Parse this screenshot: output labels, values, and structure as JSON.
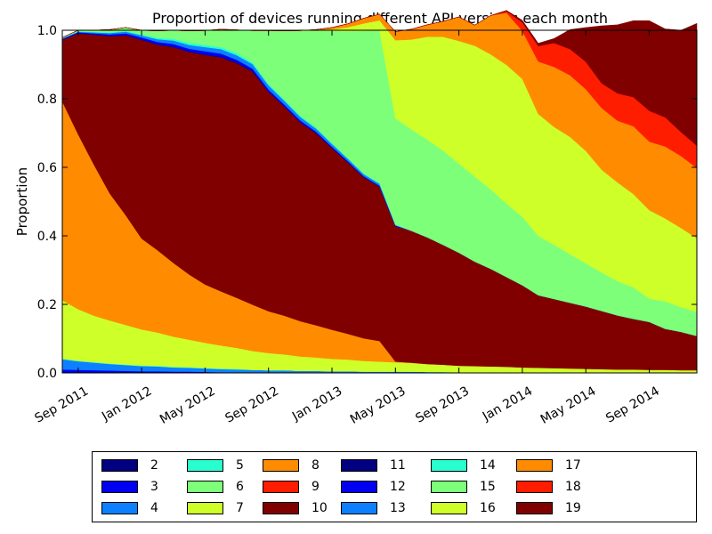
{
  "chart_data": {
    "type": "area",
    "stacked": true,
    "title": "Proportion of devices running different API versions each month",
    "xlabel": "",
    "ylabel": "Proportion",
    "ylim": [
      0,
      1
    ],
    "yticks": [
      "0.0",
      "0.2",
      "0.4",
      "0.6",
      "0.8",
      "1.0"
    ],
    "xticks": [
      "Sep 2011",
      "Jan 2012",
      "May 2012",
      "Sep 2012",
      "Jan 2013",
      "May 2013",
      "Sep 2013",
      "Jan 2014",
      "May 2014",
      "Sep 2014"
    ],
    "x_months": [
      "2011-08",
      "2011-09",
      "2011-10",
      "2011-11",
      "2011-12",
      "2012-01",
      "2012-02",
      "2012-03",
      "2012-04",
      "2012-05",
      "2012-06",
      "2012-07",
      "2012-08",
      "2012-09",
      "2012-10",
      "2012-11",
      "2012-12",
      "2013-01",
      "2013-02",
      "2013-03",
      "2013-04",
      "2013-05",
      "2013-06",
      "2013-07",
      "2013-08",
      "2013-09",
      "2013-10",
      "2013-11",
      "2013-12",
      "2014-01",
      "2014-02",
      "2014-03",
      "2014-04",
      "2014-05",
      "2014-06",
      "2014-07",
      "2014-08",
      "2014-09",
      "2014-10",
      "2014-11",
      "2014-12"
    ],
    "grid": false,
    "legend_position": "below",
    "series": [
      {
        "name": "2",
        "color": "#000080",
        "values": [
          0.002,
          0.002,
          0.002,
          0.002,
          0.001,
          0.001,
          0.001,
          0.001,
          0.001,
          0,
          0,
          0,
          0,
          0,
          0,
          0,
          0,
          0,
          0,
          0,
          0,
          0,
          0,
          0,
          0,
          0,
          0,
          0,
          0,
          0,
          0,
          0,
          0,
          0,
          0,
          0,
          0,
          0,
          0,
          0,
          0
        ]
      },
      {
        "name": "3",
        "color": "#0000f1",
        "values": [
          0.008,
          0.007,
          0.006,
          0.005,
          0.005,
          0.004,
          0.004,
          0.003,
          0.003,
          0.003,
          0.002,
          0.002,
          0.002,
          0.002,
          0.002,
          0.001,
          0.001,
          0.001,
          0.001,
          0.001,
          0.001,
          0.001,
          0.001,
          0.001,
          0.001,
          0,
          0,
          0,
          0,
          0,
          0,
          0,
          0,
          0,
          0,
          0,
          0,
          0,
          0,
          0,
          0
        ]
      },
      {
        "name": "4",
        "color": "#0d80ff",
        "values": [
          0.03,
          0.025,
          0.022,
          0.019,
          0.017,
          0.015,
          0.014,
          0.012,
          0.011,
          0.01,
          0.009,
          0.008,
          0.007,
          0.006,
          0.006,
          0.005,
          0.005,
          0.004,
          0.004,
          0.003,
          0.003,
          0.003,
          0.003,
          0.002,
          0.002,
          0.002,
          0.002,
          0.002,
          0.002,
          0.001,
          0.001,
          0.001,
          0.001,
          0.001,
          0.001,
          0.001,
          0.001,
          0.001,
          0.001,
          0.001,
          0.001
        ]
      },
      {
        "name": "5",
        "color": "#29ffce",
        "values": [
          0.001,
          0.001,
          0.001,
          0.001,
          0.001,
          0.001,
          0.001,
          0.001,
          0.001,
          0.001,
          0.001,
          0.001,
          0,
          0,
          0,
          0,
          0,
          0,
          0,
          0,
          0,
          0,
          0,
          0,
          0,
          0,
          0,
          0,
          0,
          0,
          0,
          0,
          0,
          0,
          0,
          0,
          0,
          0,
          0,
          0,
          0
        ]
      },
      {
        "name": "6",
        "color": "#7dff7a",
        "values": [
          0.001,
          0.001,
          0.001,
          0.001,
          0.001,
          0.001,
          0.001,
          0.001,
          0.001,
          0.001,
          0.001,
          0.001,
          0,
          0,
          0,
          0,
          0,
          0,
          0,
          0,
          0,
          0,
          0,
          0,
          0,
          0,
          0,
          0,
          0,
          0,
          0,
          0,
          0,
          0,
          0,
          0,
          0,
          0,
          0,
          0,
          0
        ]
      },
      {
        "name": "7",
        "color": "#ceff29",
        "values": [
          0.17,
          0.15,
          0.135,
          0.125,
          0.115,
          0.105,
          0.097,
          0.088,
          0.08,
          0.073,
          0.067,
          0.061,
          0.055,
          0.05,
          0.046,
          0.042,
          0.039,
          0.036,
          0.034,
          0.031,
          0.029,
          0.027,
          0.025,
          0.023,
          0.021,
          0.019,
          0.018,
          0.017,
          0.016,
          0.015,
          0.014,
          0.013,
          0.012,
          0.011,
          0.01,
          0.009,
          0.009,
          0.008,
          0.008,
          0.007,
          0.007
        ]
      },
      {
        "name": "8",
        "color": "#ff8c00",
        "values": [
          0.58,
          0.51,
          0.44,
          0.37,
          0.32,
          0.265,
          0.24,
          0.215,
          0.19,
          0.17,
          0.158,
          0.146,
          0.135,
          0.122,
          0.113,
          0.103,
          0.094,
          0.085,
          0.075,
          0.066,
          0.06,
          0.002,
          0.001,
          0,
          0,
          0,
          0,
          0,
          0,
          0,
          0,
          0,
          0,
          0,
          0,
          0,
          0,
          0,
          0,
          0,
          0
        ]
      },
      {
        "name": "9",
        "color": "#ff1d00",
        "values": [
          0,
          0,
          0,
          0,
          0,
          0,
          0,
          0,
          0,
          0,
          0,
          0,
          0,
          0,
          0,
          0,
          0,
          0,
          0,
          0,
          0,
          0,
          0,
          0,
          0,
          0,
          0,
          0,
          0,
          0,
          0,
          0,
          0,
          0,
          0,
          0,
          0,
          0,
          0,
          0,
          0
        ]
      },
      {
        "name": "10",
        "color": "#800000",
        "values": [
          0.18,
          0.295,
          0.38,
          0.46,
          0.525,
          0.58,
          0.6,
          0.63,
          0.65,
          0.67,
          0.683,
          0.685,
          0.68,
          0.64,
          0.61,
          0.58,
          0.56,
          0.53,
          0.5,
          0.47,
          0.45,
          0.395,
          0.385,
          0.37,
          0.35,
          0.33,
          0.305,
          0.285,
          0.262,
          0.24,
          0.212,
          0.202,
          0.192,
          0.182,
          0.17,
          0.158,
          0.148,
          0.14,
          0.12,
          0.112,
          0.1
        ]
      },
      {
        "name": "11",
        "color": "#000080",
        "values": [
          0.001,
          0.001,
          0.001,
          0.001,
          0.001,
          0.001,
          0.001,
          0.001,
          0.001,
          0.002,
          0.002,
          0.002,
          0.002,
          0.001,
          0.001,
          0.001,
          0.001,
          0.001,
          0.001,
          0.001,
          0.001,
          0.001,
          0,
          0,
          0,
          0,
          0,
          0,
          0,
          0,
          0,
          0,
          0,
          0,
          0,
          0,
          0,
          0,
          0,
          0,
          0
        ]
      },
      {
        "name": "12",
        "color": "#0000f1",
        "values": [
          0.002,
          0.002,
          0.003,
          0.004,
          0.005,
          0.006,
          0.007,
          0.008,
          0.008,
          0.009,
          0.009,
          0.008,
          0.007,
          0.006,
          0.005,
          0.005,
          0.004,
          0.003,
          0.003,
          0.002,
          0.002,
          0.001,
          0,
          0,
          0,
          0,
          0,
          0,
          0,
          0,
          0,
          0,
          0,
          0,
          0,
          0,
          0,
          0,
          0,
          0,
          0
        ]
      },
      {
        "name": "13",
        "color": "#0d80ff",
        "values": [
          0.002,
          0.002,
          0.003,
          0.004,
          0.005,
          0.006,
          0.008,
          0.01,
          0.011,
          0.012,
          0.013,
          0.013,
          0.013,
          0.012,
          0.011,
          0.01,
          0.009,
          0.008,
          0.007,
          0.006,
          0.006,
          0.002,
          0,
          0,
          0,
          0,
          0,
          0,
          0,
          0,
          0,
          0,
          0,
          0,
          0,
          0,
          0,
          0,
          0,
          0,
          0
        ]
      },
      {
        "name": "14",
        "color": "#29ffce",
        "values": [
          0.001,
          0.001,
          0.001,
          0.002,
          0.002,
          0.003,
          0.004,
          0.005,
          0.006,
          0.006,
          0.006,
          0.006,
          0.005,
          0.005,
          0.004,
          0.004,
          0.003,
          0.003,
          0.002,
          0.002,
          0.002,
          0.001,
          0,
          0,
          0,
          0,
          0,
          0,
          0,
          0,
          0,
          0,
          0,
          0,
          0,
          0,
          0,
          0,
          0,
          0,
          0
        ]
      },
      {
        "name": "15",
        "color": "#7dff7a",
        "values": [
          0.001,
          0.003,
          0.005,
          0.008,
          0.01,
          0.012,
          0.02,
          0.025,
          0.035,
          0.042,
          0.052,
          0.068,
          0.093,
          0.155,
          0.2,
          0.247,
          0.283,
          0.327,
          0.37,
          0.416,
          0.445,
          0.31,
          0.296,
          0.285,
          0.275,
          0.26,
          0.248,
          0.232,
          0.214,
          0.2,
          0.173,
          0.158,
          0.142,
          0.126,
          0.112,
          0.1,
          0.092,
          0.068,
          0.08,
          0.072,
          0.07
        ]
      },
      {
        "name": "16",
        "color": "#ceff29",
        "values": [
          0,
          0,
          0,
          0,
          0,
          0,
          0,
          0,
          0,
          0,
          0,
          0,
          0,
          0,
          0,
          0.001,
          0.002,
          0.005,
          0.012,
          0.022,
          0.03,
          0.228,
          0.262,
          0.3,
          0.332,
          0.358,
          0.382,
          0.394,
          0.405,
          0.402,
          0.356,
          0.344,
          0.342,
          0.328,
          0.3,
          0.288,
          0.272,
          0.258,
          0.242,
          0.231,
          0.215
        ]
      },
      {
        "name": "17",
        "color": "#ff8c00",
        "values": [
          0,
          0,
          0,
          0,
          0,
          0,
          0,
          0,
          0,
          0,
          0,
          0,
          0,
          0,
          0,
          0,
          0.001,
          0.005,
          0.01,
          0.015,
          0.018,
          0.025,
          0.03,
          0.035,
          0.045,
          0.07,
          0.06,
          0.113,
          0.152,
          0.14,
          0.153,
          0.175,
          0.18,
          0.18,
          0.18,
          0.18,
          0.198,
          0.2,
          0.21,
          0.21,
          0.205
        ]
      },
      {
        "name": "18",
        "color": "#ff1d00",
        "values": [
          0,
          0,
          0,
          0,
          0,
          0,
          0,
          0,
          0,
          0,
          0,
          0,
          0,
          0,
          0,
          0,
          0,
          0,
          0,
          0,
          0,
          0,
          0,
          0,
          0,
          0,
          0,
          0,
          0.005,
          0.025,
          0.045,
          0.07,
          0.076,
          0.08,
          0.072,
          0.08,
          0.085,
          0.09,
          0.085,
          0.07,
          0.065
        ]
      },
      {
        "name": "19",
        "color": "#800000",
        "values": [
          0,
          0,
          0,
          0,
          0,
          0,
          0,
          0,
          0,
          0,
          0,
          0,
          0,
          0,
          0,
          0,
          0,
          0,
          0,
          0,
          0,
          0,
          0,
          0,
          0,
          0,
          0,
          0,
          0.002,
          0.006,
          0.008,
          0.013,
          0.057,
          0.1,
          0.168,
          0.2,
          0.223,
          0.263,
          0.258,
          0.297,
          0.357
        ]
      }
    ]
  }
}
